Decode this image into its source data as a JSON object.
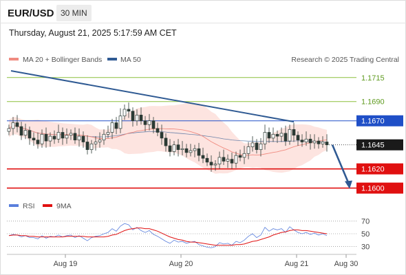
{
  "header": {
    "pair": "EUR/USD",
    "timeframe": "30 MIN",
    "datetime": "Thursday, August 21, 2025 5:17:59 AM CET"
  },
  "chart_data": [
    {
      "type": "candlestick",
      "legend": [
        {
          "name": "MA 20 + Bollinger Bands",
          "color": "#f08b80"
        },
        {
          "name": "MA 50",
          "color": "#2f5a93"
        }
      ],
      "watermark": "Research © 2025 Trading Central",
      "ylim": [
        1.1594,
        1.1727
      ],
      "levels": [
        {
          "value": 1.1715,
          "label": "1.1715",
          "role": "resistance",
          "color": "#8bbf3a"
        },
        {
          "value": 1.169,
          "label": "1.1690",
          "role": "resistance",
          "color": "#8bbf3a"
        },
        {
          "value": 1.167,
          "label": "1.1670",
          "role": "pivot",
          "color": "#1f4fc7"
        },
        {
          "value": 1.1645,
          "label": "1.1645",
          "role": "last price",
          "color": "#1a1a1a"
        },
        {
          "value": 1.162,
          "label": "1.1620",
          "role": "support",
          "color": "#e01010"
        },
        {
          "value": 1.16,
          "label": "1.1600",
          "role": "support",
          "color": "#e01010"
        }
      ],
      "trendline": {
        "from": [
          1,
          1.1722
        ],
        "to": [
          69,
          1.1669
        ]
      },
      "projection": {
        "from": [
          78,
          1.1645
        ],
        "to": [
          82,
          1.16
        ],
        "color": "#2f5a93"
      },
      "closes": [
        1.1662,
        1.1668,
        1.1664,
        1.1655,
        1.166,
        1.1652,
        1.165,
        1.1646,
        1.1656,
        1.1649,
        1.1654,
        1.1651,
        1.1658,
        1.1652,
        1.1655,
        1.1657,
        1.165,
        1.1654,
        1.1648,
        1.164,
        1.1646,
        1.1648,
        1.165,
        1.1656,
        1.1658,
        1.1668,
        1.1662,
        1.1675,
        1.1682,
        1.168,
        1.167,
        1.1676,
        1.167,
        1.1666,
        1.167,
        1.1662,
        1.1658,
        1.1652,
        1.1644,
        1.1638,
        1.1645,
        1.164,
        1.1641,
        1.1637,
        1.1639,
        1.1641,
        1.1634,
        1.1631,
        1.1627,
        1.1624,
        1.1625,
        1.1632,
        1.1628,
        1.163,
        1.1626,
        1.1634,
        1.1632,
        1.1636,
        1.1643,
        1.1647,
        1.164,
        1.1646,
        1.1658,
        1.1652,
        1.1656,
        1.1654,
        1.1657,
        1.1649,
        1.1661,
        1.1655,
        1.165,
        1.1648,
        1.1651,
        1.1647,
        1.1649,
        1.1646,
        1.1648,
        1.1645
      ],
      "x_ticks": [
        {
          "label": "Aug 19",
          "index": 13
        },
        {
          "label": "Aug 20",
          "index": 41
        },
        {
          "label": "Aug 21",
          "index": 69
        },
        {
          "label": "Aug 30",
          "index": 81
        }
      ]
    },
    {
      "type": "line",
      "name": "RSI panel",
      "legend": [
        {
          "name": "RSI",
          "color": "#5a7fdc"
        },
        {
          "name": "9MA",
          "color": "#e01010"
        }
      ],
      "ylim": [
        22,
        78
      ],
      "y_ticks": [
        70,
        50,
        30
      ],
      "rsi": [
        47,
        49,
        48,
        45,
        47,
        44,
        44,
        42,
        47,
        43,
        46,
        45,
        48,
        45,
        47,
        48,
        44,
        47,
        43,
        39,
        44,
        46,
        47,
        50,
        52,
        58,
        54,
        62,
        66,
        64,
        56,
        60,
        55,
        52,
        55,
        49,
        46,
        42,
        38,
        35,
        40,
        37,
        38,
        35,
        37,
        38,
        33,
        31,
        29,
        28,
        30,
        36,
        34,
        35,
        32,
        38,
        36,
        40,
        46,
        50,
        44,
        48,
        60,
        54,
        58,
        56,
        58,
        52,
        61,
        56,
        52,
        50,
        52,
        49,
        51,
        48,
        50,
        47
      ],
      "ma9": [
        47,
        48,
        48,
        47,
        47,
        46,
        46,
        45,
        45,
        45,
        45,
        45,
        45,
        45,
        46,
        46,
        46,
        46,
        46,
        45,
        45,
        45,
        45,
        45,
        46,
        48,
        49,
        52,
        55,
        57,
        58,
        59,
        59,
        58,
        58,
        56,
        54,
        51,
        48,
        45,
        43,
        41,
        40,
        38,
        37,
        37,
        36,
        35,
        34,
        33,
        32,
        32,
        32,
        32,
        32,
        33,
        33,
        34,
        36,
        38,
        39,
        41,
        43,
        45,
        48,
        50,
        52,
        53,
        55,
        56,
        56,
        55,
        55,
        54,
        53,
        52,
        51,
        50
      ]
    }
  ]
}
